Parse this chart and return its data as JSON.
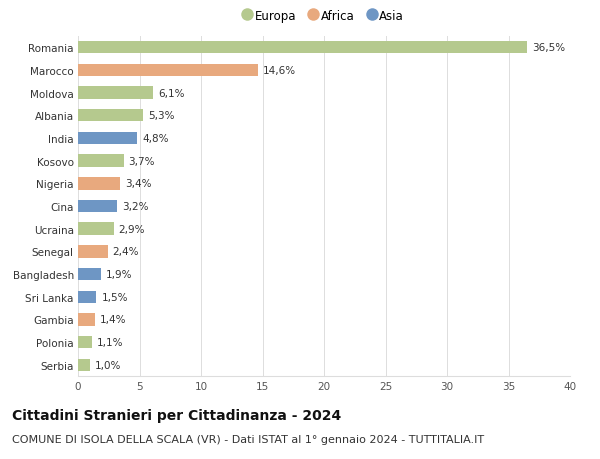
{
  "countries": [
    "Romania",
    "Marocco",
    "Moldova",
    "Albania",
    "India",
    "Kosovo",
    "Nigeria",
    "Cina",
    "Ucraina",
    "Senegal",
    "Bangladesh",
    "Sri Lanka",
    "Gambia",
    "Polonia",
    "Serbia"
  ],
  "values": [
    36.5,
    14.6,
    6.1,
    5.3,
    4.8,
    3.7,
    3.4,
    3.2,
    2.9,
    2.4,
    1.9,
    1.5,
    1.4,
    1.1,
    1.0
  ],
  "labels": [
    "36,5%",
    "14,6%",
    "6,1%",
    "5,3%",
    "4,8%",
    "3,7%",
    "3,4%",
    "3,2%",
    "2,9%",
    "2,4%",
    "1,9%",
    "1,5%",
    "1,4%",
    "1,1%",
    "1,0%"
  ],
  "continents": [
    "Europa",
    "Africa",
    "Europa",
    "Europa",
    "Asia",
    "Europa",
    "Africa",
    "Asia",
    "Europa",
    "Africa",
    "Asia",
    "Asia",
    "Africa",
    "Europa",
    "Europa"
  ],
  "colors": {
    "Europa": "#b5c98e",
    "Africa": "#e8a97e",
    "Asia": "#6e96c4"
  },
  "xlim": [
    0,
    40
  ],
  "xticks": [
    0,
    5,
    10,
    15,
    20,
    25,
    30,
    35,
    40
  ],
  "title": "Cittadini Stranieri per Cittadinanza - 2024",
  "subtitle": "COMUNE DI ISOLA DELLA SCALA (VR) - Dati ISTAT al 1° gennaio 2024 - TUTTITALIA.IT",
  "background_color": "#ffffff",
  "grid_color": "#dddddd",
  "bar_height": 0.55,
  "title_fontsize": 10,
  "subtitle_fontsize": 8,
  "label_fontsize": 7.5,
  "tick_fontsize": 7.5,
  "legend_fontsize": 8.5
}
